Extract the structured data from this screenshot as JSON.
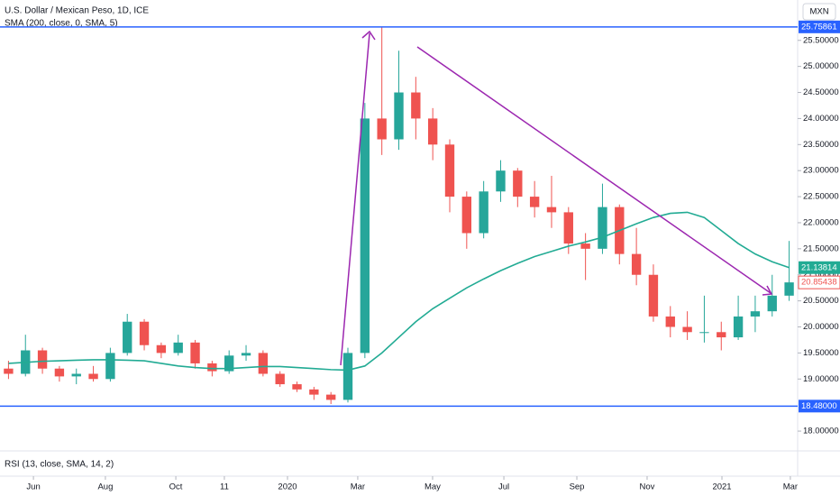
{
  "chart_data": {
    "type": "candlestick",
    "title": "U.S. Dollar / Mexican Peso, 1D, ICE",
    "indicator": "SMA (200, close, 0, SMA, 5)",
    "lower_pane": "RSI (13, close, SMA, 14, 2)",
    "currency": "MXN",
    "open": [
      19.2,
      19.1,
      19.55,
      19.2,
      19.05,
      19.1,
      19.0,
      19.5,
      20.1,
      19.65,
      19.5,
      19.7,
      19.3,
      19.15,
      19.45,
      19.5,
      19.1,
      18.9,
      18.8,
      18.7,
      18.6,
      19.5,
      24.0,
      23.6,
      24.5,
      24.0,
      23.5,
      22.5,
      21.8,
      22.6,
      23.0,
      22.5,
      22.3,
      22.2,
      21.6,
      21.5,
      22.3,
      21.4,
      21.0,
      20.2,
      20.0,
      19.9,
      19.9,
      19.8,
      20.2,
      20.3,
      20.6
    ],
    "high": [
      19.35,
      19.85,
      19.6,
      19.25,
      19.2,
      19.25,
      19.6,
      20.25,
      20.15,
      19.7,
      19.85,
      19.75,
      19.35,
      19.55,
      19.65,
      19.55,
      19.15,
      18.95,
      18.85,
      18.75,
      19.6,
      24.3,
      25.76,
      25.3,
      24.8,
      24.2,
      23.6,
      22.6,
      22.8,
      23.2,
      23.05,
      22.8,
      22.9,
      22.3,
      21.8,
      22.75,
      22.35,
      21.9,
      21.2,
      20.4,
      20.3,
      20.6,
      20.1,
      20.6,
      20.6,
      21.0,
      21.65
    ],
    "low": [
      19.0,
      19.05,
      19.1,
      18.95,
      18.9,
      18.95,
      18.95,
      19.45,
      19.55,
      19.4,
      19.45,
      19.2,
      19.05,
      19.1,
      19.35,
      19.05,
      18.85,
      18.75,
      18.6,
      18.52,
      18.55,
      19.4,
      23.3,
      23.4,
      23.6,
      23.2,
      22.2,
      21.5,
      21.7,
      22.4,
      22.3,
      22.1,
      21.9,
      21.4,
      20.9,
      21.4,
      21.2,
      20.8,
      20.1,
      19.8,
      19.75,
      19.7,
      19.55,
      19.75,
      19.9,
      20.2,
      20.5
    ],
    "close": [
      19.1,
      19.55,
      19.2,
      19.05,
      19.1,
      19.0,
      19.5,
      20.1,
      19.65,
      19.5,
      19.7,
      19.3,
      19.15,
      19.45,
      19.5,
      19.1,
      18.9,
      18.8,
      18.7,
      18.6,
      19.5,
      24.0,
      23.6,
      24.5,
      24.0,
      23.5,
      22.5,
      21.8,
      22.6,
      23.0,
      22.5,
      22.3,
      22.2,
      21.6,
      21.5,
      22.3,
      21.4,
      21.0,
      20.2,
      20.0,
      19.9,
      19.9,
      19.8,
      20.2,
      20.3,
      20.6,
      20.85438
    ],
    "up_color": "#26a69a",
    "down_color": "#ef5350",
    "sma": [
      19.3,
      19.32,
      19.34,
      19.35,
      19.36,
      19.37,
      19.37,
      19.36,
      19.35,
      19.3,
      19.25,
      19.22,
      19.2,
      19.2,
      19.22,
      19.24,
      19.24,
      19.22,
      19.2,
      19.18,
      19.17,
      19.25,
      19.5,
      19.8,
      20.1,
      20.35,
      20.55,
      20.75,
      20.92,
      21.08,
      21.22,
      21.35,
      21.45,
      21.55,
      21.63,
      21.72,
      21.85,
      21.98,
      22.1,
      22.18,
      22.2,
      22.1,
      21.85,
      21.6,
      21.4,
      21.25,
      21.13814
    ],
    "sma_color": "#22ab94",
    "hlines": [
      25.75861,
      {
        "value": 18.48,
        "label": "18.48000"
      }
    ],
    "hline_color": "#2962ff",
    "xlim": [
      0,
      47
    ],
    "xticks": [
      {
        "value": 1.97,
        "label": "Jun"
      },
      {
        "value": 6.21,
        "label": "Aug"
      },
      {
        "value": 10.36,
        "label": "Oct"
      },
      {
        "value": 13.22,
        "label": "11"
      },
      {
        "value": 16.94,
        "label": "2020"
      },
      {
        "value": 21.08,
        "label": "Mar"
      },
      {
        "value": 25.49,
        "label": "May"
      },
      {
        "value": 29.69,
        "label": "Jul"
      },
      {
        "value": 33.99,
        "label": "Sep"
      },
      {
        "value": 38.13,
        "label": "Nov"
      },
      {
        "value": 42.54,
        "label": "2021"
      },
      {
        "value": 46.57,
        "label": "Mar"
      }
    ],
    "ylim": [
      17.62,
      25.79
    ],
    "yticks": [
      {
        "value": 18,
        "label": "18.00000"
      },
      {
        "value": 19,
        "label": "19.00000"
      },
      {
        "value": 19.5,
        "label": "19.50000"
      },
      {
        "value": 20,
        "label": "20.00000"
      },
      {
        "value": 20.5,
        "label": "20.50000"
      },
      {
        "value": 21,
        "label": "21.00000"
      },
      {
        "value": 21.5,
        "label": "21.50000"
      },
      {
        "value": 22,
        "label": "22.00000"
      },
      {
        "value": 22.5,
        "label": "22.50000"
      },
      {
        "value": 23,
        "label": "23.00000"
      },
      {
        "value": 23.5,
        "label": "23.50000"
      },
      {
        "value": 24,
        "label": "24.00000"
      },
      {
        "value": 24.5,
        "label": "24.50000"
      },
      {
        "value": 25,
        "label": "25.00000"
      },
      {
        "value": 25.5,
        "label": "25.50000"
      }
    ]
  }
}
